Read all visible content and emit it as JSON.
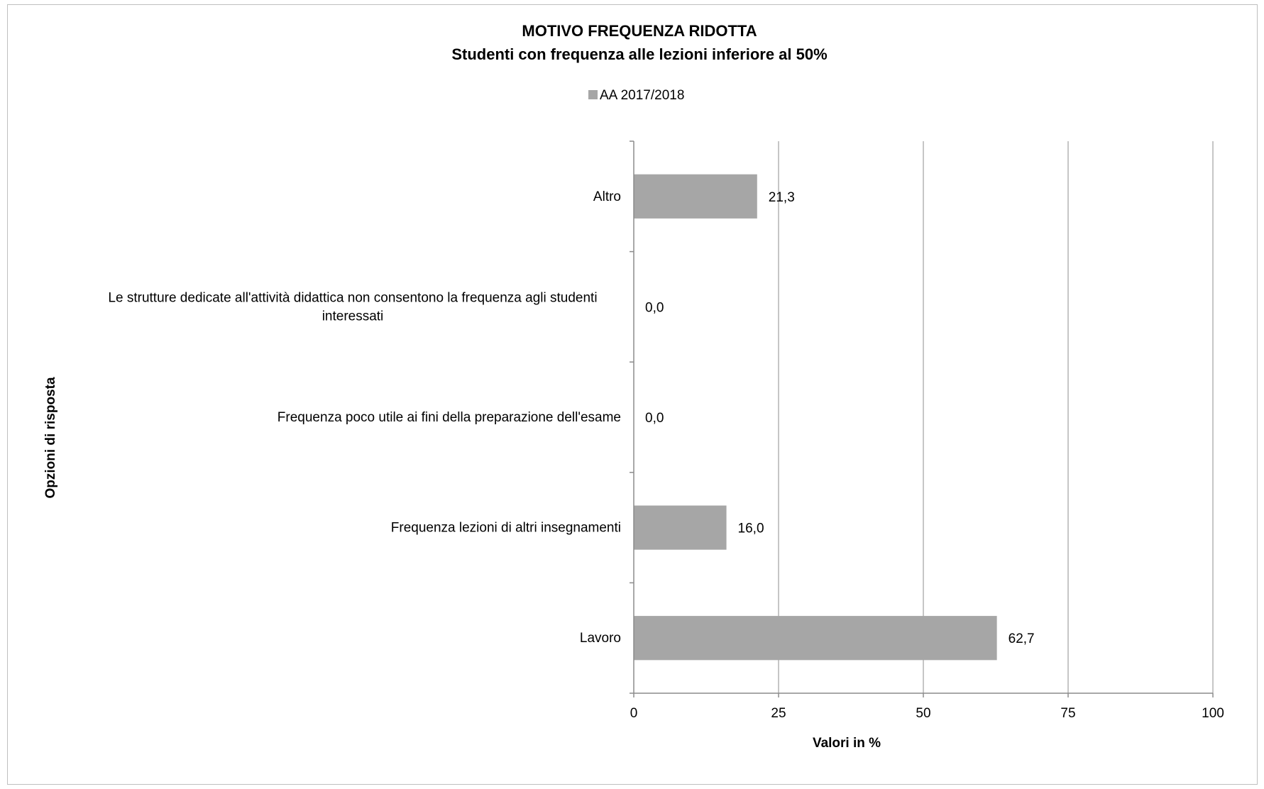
{
  "chart_data": {
    "type": "bar",
    "orientation": "horizontal",
    "title": "MOTIVO FREQUENZA RIDOTTA",
    "subtitle": "Studenti con frequenza alle lezioni  inferiore  al 50%",
    "xlabel": "Valori in %",
    "ylabel": "Opzioni di risposta",
    "legend_position": "top",
    "grid": true,
    "xlim": [
      0,
      100
    ],
    "xticks": [
      "0",
      "25",
      "50",
      "75",
      "100"
    ],
    "categories": [
      "Altro",
      "Le strutture dedicate all'attività didattica non consentono la frequenza agli studenti interessati",
      "Frequenza poco utile ai fini della preparazione dell'esame",
      "Frequenza lezioni di altri insegnamenti",
      "Lavoro"
    ],
    "category_lines": [
      [
        "Altro"
      ],
      [
        "Le strutture dedicate all'attività didattica non consentono la frequenza agli studenti",
        "interessati"
      ],
      [
        "Frequenza poco utile ai fini della preparazione dell'esame"
      ],
      [
        "Frequenza lezioni di altri insegnamenti"
      ],
      [
        "Lavoro"
      ]
    ],
    "series": [
      {
        "name": "AA 2017/2018",
        "color": "#a6a6a6",
        "values": [
          21.3,
          0.0,
          0.0,
          16.0,
          62.7
        ],
        "labels": [
          "21,3",
          "0,0",
          "0,0",
          "16,0",
          "62,7"
        ]
      }
    ]
  }
}
